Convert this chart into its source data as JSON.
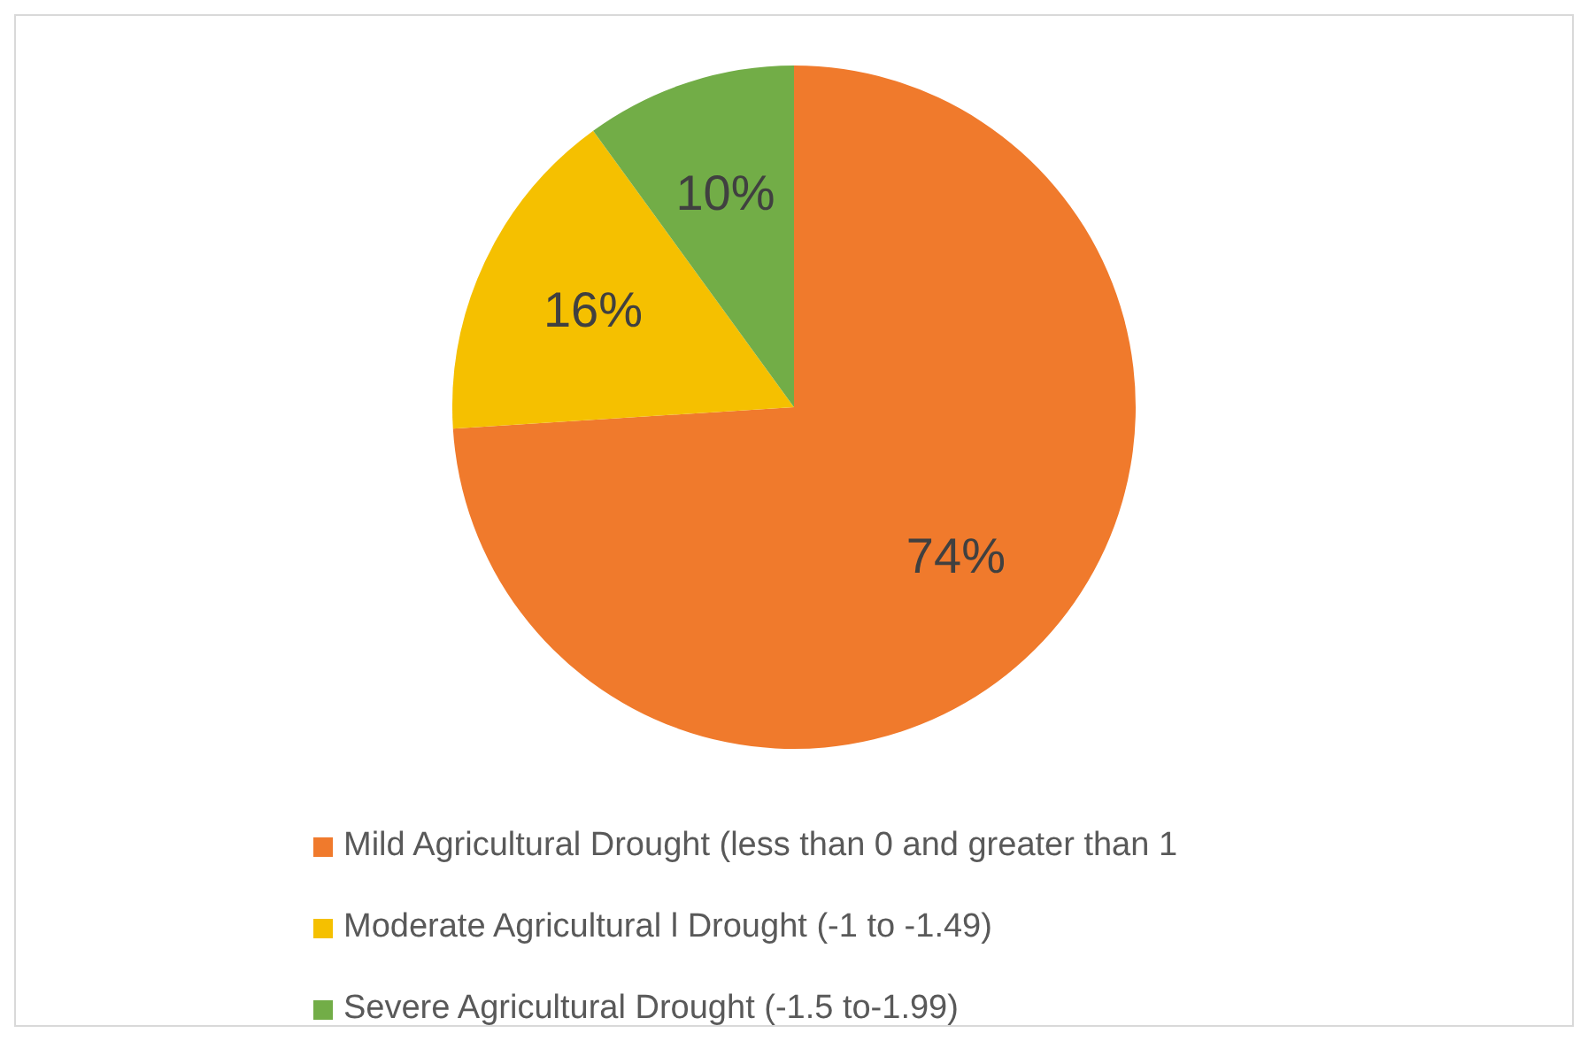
{
  "chart_data": {
    "type": "pie",
    "categories": [
      "Mild Agricultural Drought (less than 0 and greater than 1",
      "Moderate Agricultural l Drought (-1 to -1.49)",
      "Severe Agricultural Drought (-1.5 to-1.99)"
    ],
    "values": [
      74,
      16,
      10
    ],
    "colors": [
      "#f07a2c",
      "#f5c000",
      "#72ad47"
    ],
    "value_labels": [
      "74%",
      "16%",
      "10%"
    ],
    "legend": "bottom"
  }
}
